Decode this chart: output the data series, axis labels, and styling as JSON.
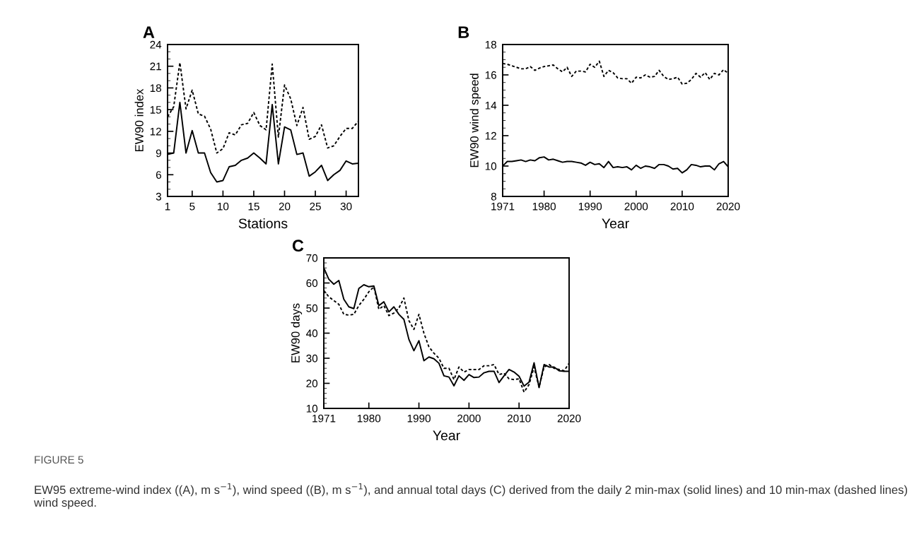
{
  "chart_data": [
    {
      "type": "line",
      "title": "A",
      "xlabel": "Stations",
      "ylabel": "EW90 index",
      "x": [
        1,
        2,
        3,
        4,
        5,
        6,
        7,
        8,
        9,
        10,
        11,
        12,
        13,
        14,
        15,
        16,
        17,
        18,
        19,
        20,
        21,
        22,
        23,
        24,
        25,
        26,
        27,
        28,
        29,
        30,
        31,
        32
      ],
      "series": [
        {
          "color": "#000000",
          "line_style": "solid",
          "values": [
            8.8,
            9.0,
            16.0,
            9.0,
            12.1,
            9.0,
            9.0,
            6.3,
            5.0,
            5.2,
            7.1,
            7.3,
            8.0,
            8.3,
            9.0,
            8.3,
            7.5,
            15.7,
            7.5,
            12.6,
            12.2,
            8.8,
            9.0,
            5.8,
            6.4,
            7.3,
            5.2,
            6.0,
            6.6,
            7.9,
            7.5,
            7.6
          ]
        },
        {
          "color": "#000000",
          "line_style": "dotted",
          "values": [
            14.0,
            15.4,
            21.5,
            15.1,
            17.7,
            14.4,
            14.1,
            12.3,
            9.0,
            9.6,
            11.8,
            11.5,
            12.9,
            13.1,
            14.6,
            12.8,
            12.2,
            21.3,
            11.2,
            18.4,
            16.5,
            12.8,
            15.3,
            10.9,
            11.3,
            12.9,
            9.7,
            10.0,
            11.3,
            12.4,
            12.4,
            13.4
          ]
        }
      ],
      "xlim": [
        1,
        32
      ],
      "xticks": [
        1,
        5,
        10,
        15,
        20,
        25,
        30
      ],
      "ylim": [
        3,
        24
      ],
      "yticks": [
        3,
        6,
        9,
        12,
        15,
        18,
        21,
        24
      ],
      "grid": false,
      "legend": false
    },
    {
      "type": "line",
      "title": "B",
      "xlabel": "Year",
      "ylabel": "EW90 wind speed",
      "x": [
        1971,
        1972,
        1973,
        1974,
        1975,
        1976,
        1977,
        1978,
        1979,
        1980,
        1981,
        1982,
        1983,
        1984,
        1985,
        1986,
        1987,
        1988,
        1989,
        1990,
        1991,
        1992,
        1993,
        1994,
        1995,
        1996,
        1997,
        1998,
        1999,
        2000,
        2001,
        2002,
        2003,
        2004,
        2005,
        2006,
        2007,
        2008,
        2009,
        2010,
        2011,
        2012,
        2013,
        2014,
        2015,
        2016,
        2017,
        2018,
        2019,
        2020
      ],
      "series": [
        {
          "color": "#000000",
          "line_style": "solid",
          "values": [
            10.0,
            10.3,
            10.3,
            10.35,
            10.4,
            10.3,
            10.4,
            10.35,
            10.55,
            10.6,
            10.4,
            10.45,
            10.35,
            10.25,
            10.3,
            10.3,
            10.25,
            10.2,
            10.05,
            10.25,
            10.1,
            10.15,
            9.9,
            10.3,
            9.9,
            9.95,
            9.9,
            9.95,
            9.75,
            10.05,
            9.85,
            10.0,
            9.95,
            9.85,
            10.1,
            10.1,
            10.0,
            9.8,
            9.85,
            9.55,
            9.75,
            10.1,
            10.05,
            9.95,
            10.0,
            10.0,
            9.75,
            10.15,
            10.3,
            9.95
          ]
        },
        {
          "color": "#000000",
          "line_style": "dotted",
          "values": [
            16.75,
            16.7,
            16.6,
            16.5,
            16.4,
            16.4,
            16.55,
            16.3,
            16.45,
            16.55,
            16.6,
            16.65,
            16.4,
            16.2,
            16.5,
            15.9,
            16.25,
            16.25,
            16.2,
            16.7,
            16.5,
            16.9,
            15.9,
            16.3,
            16.15,
            15.8,
            15.75,
            15.75,
            15.45,
            15.85,
            15.8,
            16.0,
            15.85,
            15.9,
            16.3,
            15.9,
            15.7,
            15.75,
            15.85,
            15.4,
            15.45,
            15.7,
            16.1,
            15.85,
            16.15,
            15.7,
            16.1,
            16.0,
            16.35,
            16.1
          ]
        }
      ],
      "xlim": [
        1971,
        2020
      ],
      "xticks": [
        1971,
        1980,
        1990,
        2000,
        2010,
        2020
      ],
      "ylim": [
        8,
        18
      ],
      "yticks": [
        8,
        10,
        12,
        14,
        16,
        18
      ],
      "grid": false,
      "legend": false
    },
    {
      "type": "line",
      "title": "C",
      "xlabel": "Year",
      "ylabel": "EW90 days",
      "x": [
        1971,
        1972,
        1973,
        1974,
        1975,
        1976,
        1977,
        1978,
        1979,
        1980,
        1981,
        1982,
        1983,
        1984,
        1985,
        1986,
        1987,
        1988,
        1989,
        1990,
        1991,
        1992,
        1993,
        1994,
        1995,
        1996,
        1997,
        1998,
        1999,
        2000,
        2001,
        2002,
        2003,
        2004,
        2005,
        2006,
        2007,
        2008,
        2009,
        2010,
        2011,
        2012,
        2013,
        2014,
        2015,
        2016,
        2017,
        2018,
        2019,
        2020
      ],
      "series": [
        {
          "color": "#000000",
          "line_style": "solid",
          "values": [
            66,
            61.5,
            59.5,
            61,
            53.5,
            50.5,
            49.8,
            57.8,
            59.3,
            58.5,
            58.8,
            51,
            52.5,
            48.5,
            50.5,
            47.5,
            45.5,
            37.5,
            33,
            37,
            29,
            30.5,
            29.8,
            28,
            23,
            22.5,
            19,
            23,
            21.2,
            23.5,
            22.3,
            22.5,
            24.2,
            24.8,
            24.8,
            20.3,
            23,
            25.5,
            24.5,
            22.8,
            18.9,
            20.5,
            28.2,
            18.3,
            27.5,
            26.5,
            26.5,
            25,
            24.8,
            24.8
          ]
        },
        {
          "color": "#000000",
          "line_style": "dotted",
          "values": [
            57,
            54.5,
            53,
            51.5,
            47.5,
            47.2,
            47.5,
            51,
            53.5,
            56.5,
            58.5,
            49.5,
            51,
            47,
            48,
            50,
            54,
            45,
            41.5,
            47.5,
            40,
            34.5,
            32,
            30,
            26,
            26,
            21.5,
            26.5,
            24.5,
            25.5,
            25.5,
            25.5,
            27,
            27,
            27.5,
            23.5,
            24,
            21.8,
            21.5,
            21.8,
            16.5,
            19.5,
            26.5,
            18.5,
            26.5,
            27.5,
            26,
            25.5,
            25,
            28
          ]
        }
      ],
      "xlim": [
        1971,
        2020
      ],
      "xticks": [
        1971,
        1980,
        1990,
        2000,
        2010,
        2020
      ],
      "ylim": [
        10,
        70
      ],
      "yticks": [
        10,
        20,
        30,
        40,
        50,
        60,
        70
      ],
      "grid": false,
      "legend": false,
      "annotations": [
        "FIGURE 5",
        "EW95 extreme-wind index ((A), m s$^{−1}$), wind speed ((B), m s$^{−1}$), and annual total days (C) derived from the daily 2 min-max (solid lines) and 10 min-max (dashed lines) wind speed."
      ]
    }
  ]
}
